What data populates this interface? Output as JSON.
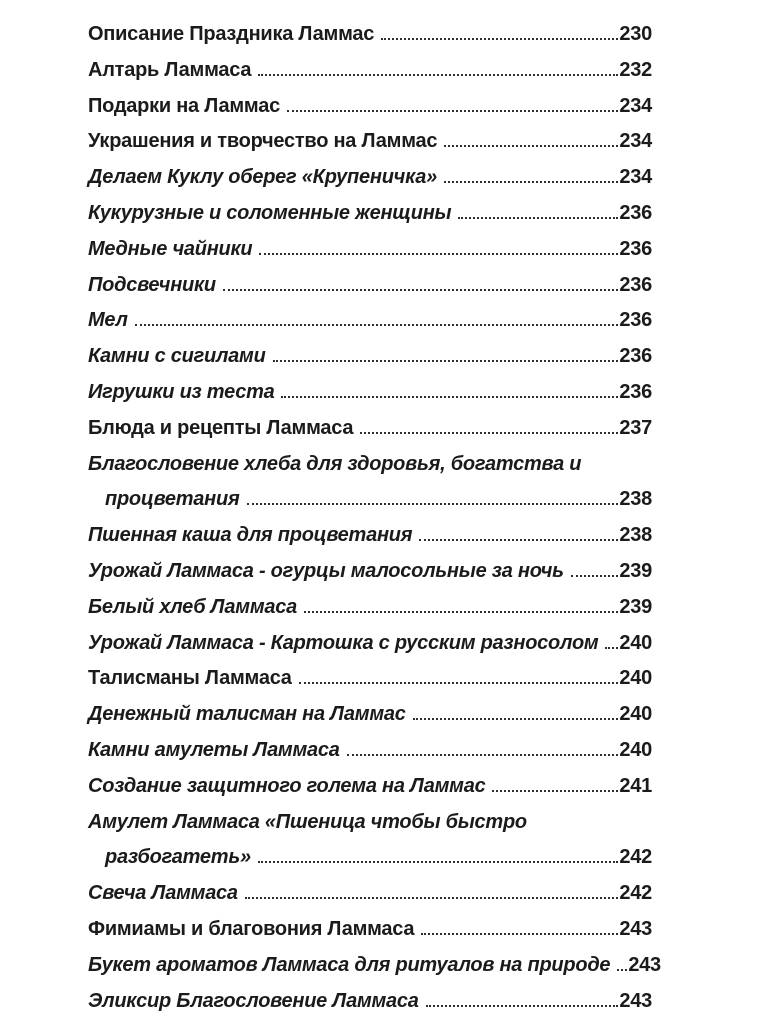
{
  "document": {
    "type": "book-table-of-contents-page",
    "language": "ru",
    "colors": {
      "background": "#ffffff",
      "text": "#1b1b1b",
      "dot_leader": "#2e2e2e"
    },
    "toc": {
      "entries": [
        {
          "lines": [
            "Описание Праздника Ламмас"
          ],
          "page": "230",
          "italic": false
        },
        {
          "lines": [
            "Алтарь Ламмаса"
          ],
          "page": "232",
          "italic": false
        },
        {
          "lines": [
            "Подарки на Ламмас"
          ],
          "page": "234",
          "italic": false
        },
        {
          "lines": [
            "Украшения и творчество на Ламмас"
          ],
          "page": "234",
          "italic": false
        },
        {
          "lines": [
            "Делаем Куклу оберег «Крупеничка»"
          ],
          "page": "234",
          "italic": true
        },
        {
          "lines": [
            "Кукурузные и соломенные женщины"
          ],
          "page": "236",
          "italic": true
        },
        {
          "lines": [
            "Медные чайники"
          ],
          "page": "236",
          "italic": true
        },
        {
          "lines": [
            "Подсвечники"
          ],
          "page": "236",
          "italic": true
        },
        {
          "lines": [
            "Мел"
          ],
          "page": "236",
          "italic": true
        },
        {
          "lines": [
            "Камни с сигилами"
          ],
          "page": "236",
          "italic": true
        },
        {
          "lines": [
            "Игрушки из теста"
          ],
          "page": "236",
          "italic": true
        },
        {
          "lines": [
            "Блюда и рецепты Ламмаса"
          ],
          "page": "237",
          "italic": false
        },
        {
          "lines": [
            "Благословение хлеба для здоровья, богатства и",
            "процветания"
          ],
          "page": "238",
          "italic": true
        },
        {
          "lines": [
            "Пшенная каша для процветания"
          ],
          "page": "238",
          "italic": true
        },
        {
          "lines": [
            "Урожай Ламмаса - огурцы малосольные за ночь"
          ],
          "page": "239",
          "italic": true
        },
        {
          "lines": [
            "Белый хлеб Ламмаса"
          ],
          "page": "239",
          "italic": true
        },
        {
          "lines": [
            "Урожай Ламмаса - Картошка с русским разносолом"
          ],
          "page": "240",
          "italic": true
        },
        {
          "lines": [
            "Талисманы Ламмаса"
          ],
          "page": "240",
          "italic": false
        },
        {
          "lines": [
            "Денежный талисман на Ламмас"
          ],
          "page": "240",
          "italic": true
        },
        {
          "lines": [
            "Камни амулеты Ламмаса"
          ],
          "page": "240",
          "italic": true
        },
        {
          "lines": [
            "Создание защитного голема на Ламмас"
          ],
          "page": "241",
          "italic": true
        },
        {
          "lines": [
            "Амулет Ламмаса «Пшеница чтобы быстро",
            "разбогатеть»"
          ],
          "page": "242",
          "italic": true
        },
        {
          "lines": [
            "Свеча Ламмаса"
          ],
          "page": "242",
          "italic": true
        },
        {
          "lines": [
            "Фимиамы и благовония Ламмаса"
          ],
          "page": "243",
          "italic": false
        },
        {
          "lines": [
            "Букет ароматов Ламмаса для ритуалов на природе"
          ],
          "page": "243",
          "italic": true
        },
        {
          "lines": [
            "Эликсир Благословение Ламмаса"
          ],
          "page": "243",
          "italic": true
        }
      ]
    }
  }
}
